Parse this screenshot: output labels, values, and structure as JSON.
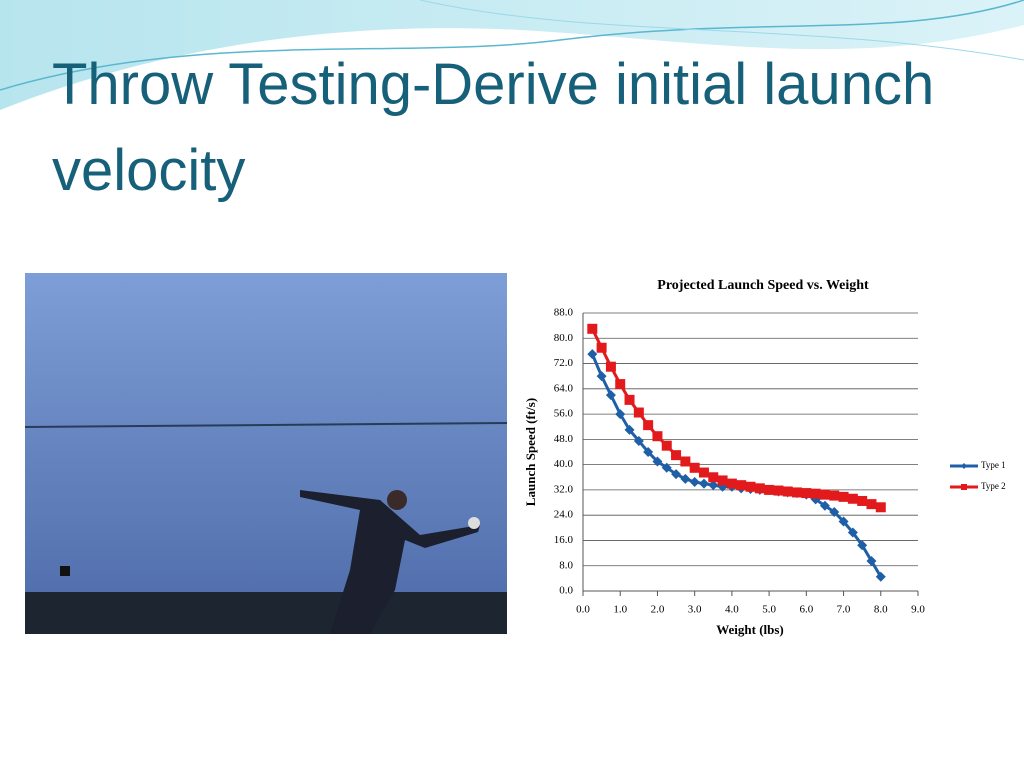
{
  "slide": {
    "title": "Throw Testing-Derive initial launch velocity"
  },
  "chart_data": {
    "type": "line",
    "title": "Projected Launch Speed vs. Weight",
    "x_label": "Weight (lbs)",
    "y_label": "Launch Speed (ft/s)",
    "x": [
      0.25,
      0.5,
      0.75,
      1.0,
      1.25,
      1.5,
      1.75,
      2.0,
      2.25,
      2.5,
      2.75,
      3.0,
      3.25,
      3.5,
      3.75,
      4.0,
      4.25,
      4.5,
      4.75,
      5.0,
      5.25,
      5.5,
      5.75,
      6.0,
      6.25,
      6.5,
      6.75,
      7.0,
      7.25,
      7.5,
      7.75,
      8.0
    ],
    "series": [
      {
        "name": "Type 1",
        "color": "#1f5fa8",
        "marker": "diamond",
        "values": [
          75,
          68,
          62,
          56,
          51,
          47.5,
          44,
          41,
          39,
          37,
          35.5,
          34.5,
          34,
          33.5,
          33,
          33,
          32.5,
          32.3,
          32,
          32,
          31.5,
          31.2,
          31,
          30.5,
          29,
          27,
          25,
          22,
          18.5,
          14.5,
          9.5,
          4.5
        ]
      },
      {
        "name": "Type 2",
        "color": "#e31a1c",
        "marker": "square",
        "values": [
          83,
          77,
          71,
          65.5,
          60.5,
          56.5,
          52.5,
          49,
          46,
          43,
          41,
          39,
          37.5,
          36,
          35,
          34,
          33.5,
          33,
          32.5,
          32,
          31.8,
          31.5,
          31.2,
          31,
          30.8,
          30.5,
          30.2,
          29.8,
          29.2,
          28.5,
          27.5,
          26.5
        ]
      }
    ],
    "xlim": [
      0,
      9
    ],
    "xticks": [
      {
        "value": 0,
        "label": "0.0"
      },
      {
        "value": 1,
        "label": "1.0"
      },
      {
        "value": 2,
        "label": "2.0"
      },
      {
        "value": 3,
        "label": "3.0"
      },
      {
        "value": 4,
        "label": "4.0"
      },
      {
        "value": 5,
        "label": "5.0"
      },
      {
        "value": 6,
        "label": "6.0"
      },
      {
        "value": 7,
        "label": "7.0"
      },
      {
        "value": 8,
        "label": "8.0"
      },
      {
        "value": 9,
        "label": "9.0"
      }
    ],
    "ylim": [
      0,
      88
    ],
    "yticks": [
      {
        "value": 0,
        "label": "0.0"
      },
      {
        "value": 8,
        "label": "8.0"
      },
      {
        "value": 16,
        "label": "16.0"
      },
      {
        "value": 24,
        "label": "24.0"
      },
      {
        "value": 32,
        "label": "32.0"
      },
      {
        "value": 40,
        "label": "40.0"
      },
      {
        "value": 48,
        "label": "48.0"
      },
      {
        "value": 56,
        "label": "56.0"
      },
      {
        "value": 64,
        "label": "64.0"
      },
      {
        "value": 72,
        "label": "72.0"
      },
      {
        "value": 80,
        "label": "80.0"
      },
      {
        "value": 88,
        "label": "88.0"
      }
    ],
    "grid": true,
    "legend": "right"
  }
}
